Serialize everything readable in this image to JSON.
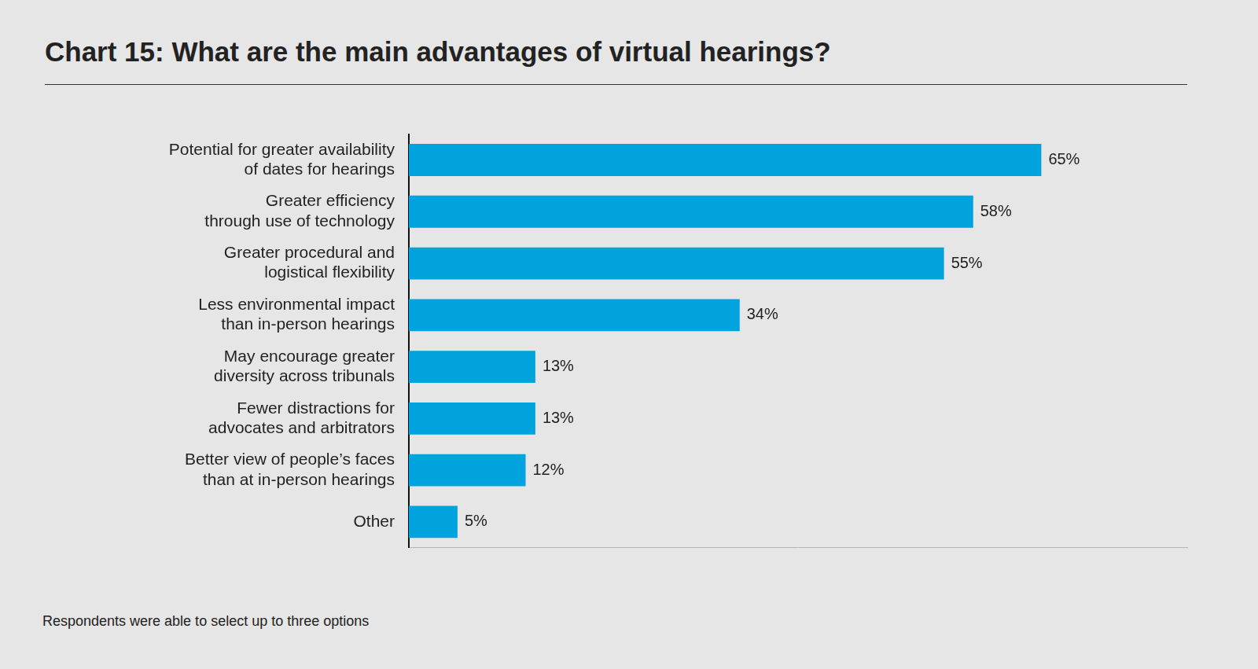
{
  "chart_data": {
    "type": "bar",
    "orientation": "horizontal",
    "title": "Chart 15: What are the main advantages of virtual hearings?",
    "footnote": "Respondents were able to select up to three options",
    "categories": [
      "Potential for greater availability of dates for hearings",
      "Greater efficiency through use of technology",
      "Greater procedural and logistical flexibility",
      "Less environmental impact than in-person hearings",
      "May encourage greater diversity across tribunals",
      "Fewer distractions for advocates and arbitrators",
      "Better view of people’s faces than at in-person hearings",
      "Other"
    ],
    "values": [
      65,
      58,
      55,
      34,
      13,
      13,
      12,
      5
    ],
    "value_labels": [
      "65%",
      "58%",
      "55%",
      "34%",
      "13%",
      "13%",
      "12%",
      "5%"
    ],
    "color": "#00a3dd",
    "xlim": [
      0,
      80
    ],
    "xticks": [],
    "grid": false,
    "data_labels": true,
    "tick_labels": "y"
  }
}
